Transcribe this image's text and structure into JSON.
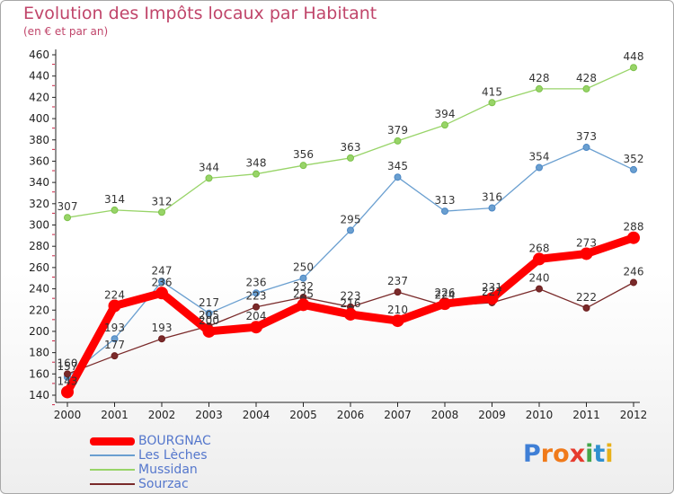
{
  "title": "Evolution des Impôts locaux par Habitant",
  "subtitle": "(en € et par an)",
  "logo": {
    "text": "Proxiti",
    "letters": [
      "P",
      "r",
      "o",
      "x",
      "i",
      "t",
      "i"
    ],
    "colors": [
      "#3f7fd6",
      "#f07a1a",
      "#f07a1a",
      "#e63b2e",
      "#44a64a",
      "#2f8fcf",
      "#e8b018"
    ]
  },
  "chart_data": {
    "type": "line",
    "title": "Evolution des Impôts locaux par Habitant",
    "subtitle": "(en € et par an)",
    "xlabel": "",
    "ylabel": "",
    "x": [
      "2000",
      "2001",
      "2002",
      "2003",
      "2004",
      "2005",
      "2006",
      "2007",
      "2008",
      "2009",
      "2010",
      "2011",
      "2012"
    ],
    "ylim": [
      140,
      460
    ],
    "yticks": [
      140,
      160,
      180,
      200,
      220,
      240,
      260,
      280,
      300,
      320,
      340,
      360,
      380,
      400,
      420,
      440,
      460
    ],
    "grid": false,
    "legend_position": "bottom-left",
    "series": [
      {
        "name": "BOURGNAC",
        "color": "#ff0000",
        "values": [
          143,
          224,
          236,
          200,
          204,
          225,
          216,
          210,
          226,
          231,
          268,
          273,
          288
        ]
      },
      {
        "name": "Les Lèches",
        "color": "#6a9fd0",
        "values": [
          157,
          193,
          247,
          217,
          236,
          250,
          295,
          345,
          313,
          316,
          354,
          373,
          352
        ]
      },
      {
        "name": "Mussidan",
        "color": "#98d468",
        "values": [
          307,
          314,
          312,
          344,
          348,
          356,
          363,
          379,
          394,
          415,
          428,
          428,
          448
        ]
      },
      {
        "name": "Sourzac",
        "color": "#7a2a2a",
        "values": [
          160,
          177,
          193,
          205,
          223,
          232,
          223,
          237,
          224,
          227,
          240,
          222,
          246
        ]
      }
    ]
  }
}
